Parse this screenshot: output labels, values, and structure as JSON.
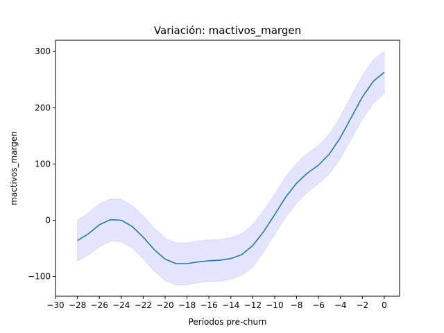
{
  "chart_data": {
    "type": "line",
    "title": "Variación: mactivos_margen",
    "xlabel": "Períodos pre-churn",
    "ylabel": "mactivos_margen",
    "xlim": [
      -30,
      1.4
    ],
    "ylim": [
      -135,
      320
    ],
    "x_ticks": [
      -30,
      -28,
      -26,
      -24,
      -22,
      -20,
      -18,
      -16,
      -14,
      -12,
      -10,
      -8,
      -6,
      -4,
      -2,
      0
    ],
    "x_tick_labels": [
      "−30",
      "−28",
      "−26",
      "−24",
      "−22",
      "−20",
      "−18",
      "−16",
      "−14",
      "−12",
      "−10",
      "−8",
      "−6",
      "−4",
      "−2",
      "0"
    ],
    "y_ticks": [
      -100,
      0,
      100,
      200,
      300
    ],
    "y_tick_labels": [
      "−100",
      "0",
      "100",
      "200",
      "300"
    ],
    "grid": false,
    "series": [
      {
        "color": "#1f77b4",
        "band_color": "#0000ff",
        "x": [
          -28,
          -27,
          -26,
          -25,
          -24,
          -23,
          -22,
          -21,
          -20,
          -19,
          -18,
          -17,
          -16,
          -15,
          -14,
          -13,
          -12,
          -11,
          -10,
          -9,
          -8,
          -7,
          -6,
          -5,
          -4,
          -3,
          -2,
          -1,
          0
        ],
        "values": [
          -36,
          -24,
          -8,
          1,
          0,
          -11,
          -30,
          -52,
          -69,
          -77,
          -77,
          -74,
          -72,
          -71,
          -68,
          -61,
          -45,
          -20,
          10,
          41,
          66,
          84,
          98,
          118,
          147,
          183,
          219,
          247,
          263
        ],
        "lower": [
          -73,
          -62,
          -47,
          -37,
          -38,
          -49,
          -68,
          -90,
          -107,
          -115,
          -115,
          -111,
          -109,
          -108,
          -105,
          -98,
          -83,
          -56,
          -25,
          5,
          31,
          50,
          65,
          83,
          110,
          145,
          180,
          208,
          225
        ],
        "upper": [
          0,
          13,
          29,
          38,
          37,
          26,
          8,
          -14,
          -32,
          -40,
          -40,
          -37,
          -35,
          -34,
          -31,
          -24,
          -8,
          17,
          46,
          77,
          101,
          119,
          133,
          153,
          184,
          221,
          257,
          285,
          300
        ]
      }
    ]
  }
}
